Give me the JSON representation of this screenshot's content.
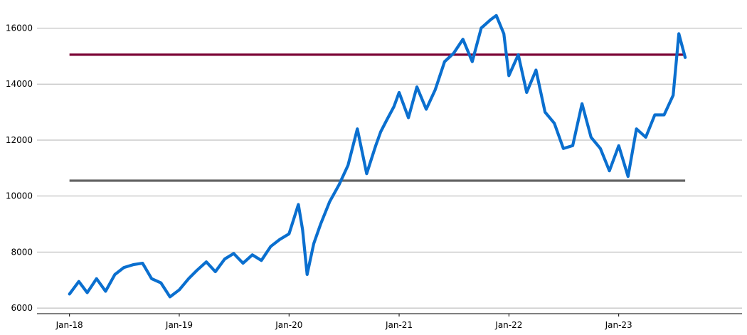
{
  "chart_data": {
    "type": "line",
    "title": "",
    "xlabel": "",
    "ylabel": "",
    "x_ticks": [
      {
        "label": "Jan-18",
        "date": "2018-01-01"
      },
      {
        "label": "Jan-19",
        "date": "2019-01-01"
      },
      {
        "label": "Jan-20",
        "date": "2020-01-01"
      },
      {
        "label": "Jan-21",
        "date": "2021-01-01"
      },
      {
        "label": "Jan-22",
        "date": "2022-01-01"
      },
      {
        "label": "Jan-23",
        "date": "2023-01-01"
      }
    ],
    "y_ticks": [
      6000,
      8000,
      10000,
      12000,
      14000,
      16000
    ],
    "xlim": [
      "2017-09-15",
      "2024-02-15"
    ],
    "ylim": [
      5800,
      16800
    ],
    "grid": "horizontal",
    "series": [
      {
        "color": "#0a6fcf",
        "x": [
          "2018-01-01",
          "2018-02-01",
          "2018-03-01",
          "2018-04-01",
          "2018-05-01",
          "2018-06-01",
          "2018-07-01",
          "2018-08-01",
          "2018-09-01",
          "2018-10-01",
          "2018-11-01",
          "2018-12-01",
          "2019-01-01",
          "2019-02-01",
          "2019-03-01",
          "2019-04-01",
          "2019-05-01",
          "2019-06-01",
          "2019-07-01",
          "2019-08-01",
          "2019-09-01",
          "2019-10-01",
          "2019-11-01",
          "2019-12-01",
          "2020-01-01",
          "2020-02-01",
          "2020-02-15",
          "2020-03-01",
          "2020-03-23",
          "2020-04-15",
          "2020-05-15",
          "2020-06-15",
          "2020-07-15",
          "2020-08-15",
          "2020-09-15",
          "2020-10-15",
          "2020-11-01",
          "2020-11-20",
          "2020-12-15",
          "2021-01-01",
          "2021-02-01",
          "2021-03-01",
          "2021-04-01",
          "2021-05-01",
          "2021-06-01",
          "2021-07-01",
          "2021-08-01",
          "2021-09-01",
          "2021-10-01",
          "2021-11-01",
          "2021-11-20",
          "2021-12-15",
          "2022-01-01",
          "2022-02-01",
          "2022-03-01",
          "2022-04-01",
          "2022-05-01",
          "2022-06-01",
          "2022-07-01",
          "2022-08-01",
          "2022-09-01",
          "2022-10-01",
          "2022-11-01",
          "2022-12-01",
          "2023-01-01",
          "2023-02-01",
          "2023-03-01",
          "2023-04-01",
          "2023-05-01",
          "2023-06-01",
          "2023-07-01",
          "2023-07-20",
          "2023-08-10"
        ],
        "y": [
          6500,
          6950,
          6550,
          7050,
          6600,
          7200,
          7450,
          7550,
          7600,
          7050,
          6900,
          6400,
          6650,
          7050,
          7350,
          7650,
          7300,
          7750,
          7950,
          7600,
          7900,
          7700,
          8200,
          8450,
          8650,
          9700,
          8800,
          7200,
          8300,
          9000,
          9800,
          10400,
          11100,
          12400,
          10800,
          11800,
          12300,
          12700,
          13200,
          13700,
          12800,
          13900,
          13100,
          13800,
          14800,
          15100,
          15600,
          14800,
          16000,
          16300,
          16450,
          15800,
          14300,
          15050,
          13700,
          14500,
          13000,
          12600,
          11700,
          11800,
          13300,
          12100,
          11700,
          10900,
          11800,
          10700,
          12400,
          12100,
          12900,
          12900,
          13600,
          15800,
          14950
        ]
      }
    ],
    "reference_lines": [
      {
        "y": 15050,
        "color": "#7a0034",
        "x_start": "2018-01-01",
        "x_end": "2023-08-10"
      },
      {
        "y": 10550,
        "color": "#636363",
        "x_start": "2018-01-01",
        "x_end": "2023-08-10"
      }
    ]
  }
}
